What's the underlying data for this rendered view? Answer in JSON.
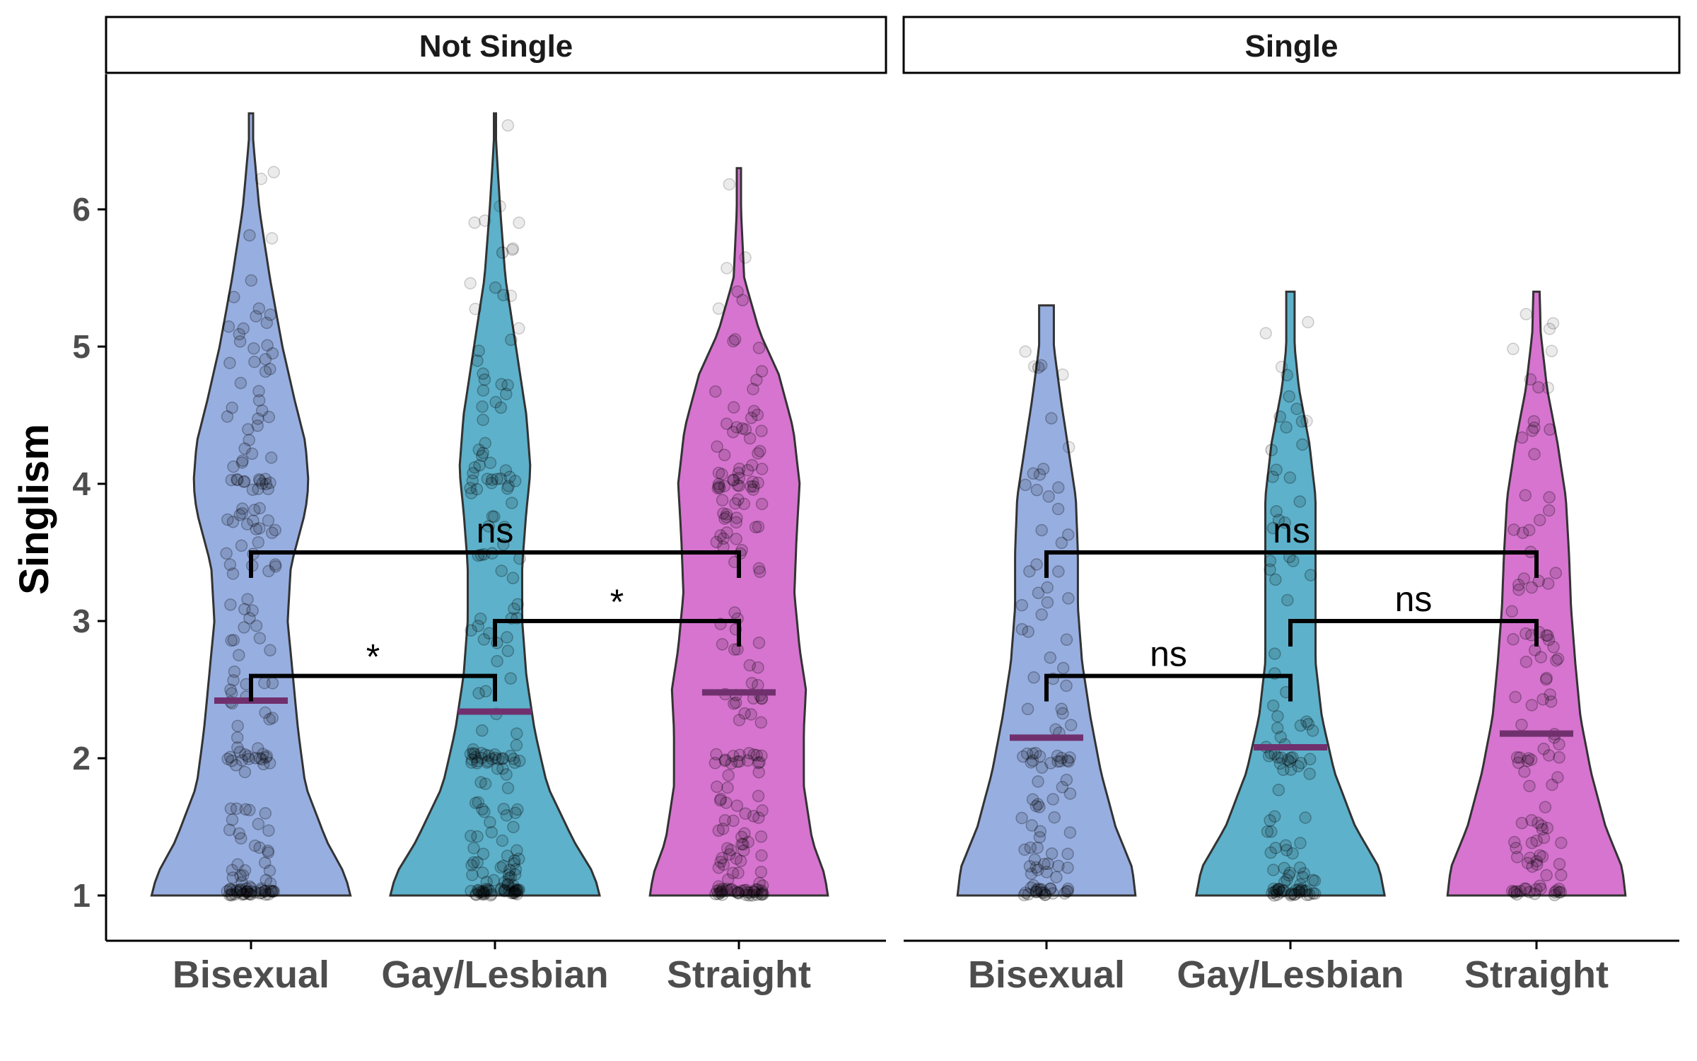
{
  "chart_data": {
    "type": "violin",
    "ylabel": "Singlism",
    "xlabel": "",
    "ylim": [
      0.7,
      6.95
    ],
    "yticks": [
      "1",
      "2",
      "3",
      "4",
      "5",
      "6"
    ],
    "categories": [
      "Bisexual",
      "Gay/Lesbian",
      "Straight"
    ],
    "colors": {
      "Bisexual": "#97aee0",
      "Gay/Lesbian": "#5db1ca",
      "Straight": "#d674cf",
      "median": "#70306e",
      "outline": "#333333"
    },
    "panels": [
      {
        "title": "Not Single",
        "groups": [
          {
            "category": "Bisexual",
            "median": 2.42,
            "max": 6.7,
            "widths": [
              [
                1,
                0.95
              ],
              [
                1.15,
                0.9
              ],
              [
                1.4,
                0.72
              ],
              [
                1.8,
                0.52
              ],
              [
                2.2,
                0.45
              ],
              [
                2.6,
                0.4
              ],
              [
                3.0,
                0.35
              ],
              [
                3.4,
                0.38
              ],
              [
                3.8,
                0.52
              ],
              [
                4.0,
                0.55
              ],
              [
                4.3,
                0.52
              ],
              [
                4.6,
                0.42
              ],
              [
                5.0,
                0.3
              ],
              [
                5.5,
                0.18
              ],
              [
                6.0,
                0.08
              ],
              [
                6.5,
                0.02
              ],
              [
                6.7,
                0.02
              ]
            ]
          },
          {
            "category": "Gay/Lesbian",
            "median": 2.34,
            "max": 6.7,
            "widths": [
              [
                1,
                1.0
              ],
              [
                1.15,
                0.95
              ],
              [
                1.4,
                0.75
              ],
              [
                1.8,
                0.5
              ],
              [
                2.2,
                0.38
              ],
              [
                2.6,
                0.3
              ],
              [
                3.0,
                0.26
              ],
              [
                3.4,
                0.26
              ],
              [
                3.8,
                0.3
              ],
              [
                4.1,
                0.34
              ],
              [
                4.5,
                0.3
              ],
              [
                5.0,
                0.2
              ],
              [
                5.5,
                0.1
              ],
              [
                6.0,
                0.05
              ],
              [
                6.5,
                0.01
              ],
              [
                6.7,
                0.01
              ]
            ]
          },
          {
            "category": "Straight",
            "median": 2.48,
            "max": 6.3,
            "widths": [
              [
                1,
                0.85
              ],
              [
                1.15,
                0.82
              ],
              [
                1.4,
                0.7
              ],
              [
                1.8,
                0.62
              ],
              [
                2.2,
                0.62
              ],
              [
                2.5,
                0.64
              ],
              [
                2.8,
                0.58
              ],
              [
                3.2,
                0.53
              ],
              [
                3.6,
                0.55
              ],
              [
                4.0,
                0.58
              ],
              [
                4.4,
                0.52
              ],
              [
                4.8,
                0.38
              ],
              [
                5.1,
                0.2
              ],
              [
                5.5,
                0.05
              ],
              [
                6.0,
                0.02
              ],
              [
                6.3,
                0.02
              ]
            ]
          }
        ],
        "comparisons": [
          {
            "from": "Bisexual",
            "to": "Gay/Lesbian",
            "y": 2.6,
            "label": "*"
          },
          {
            "from": "Gay/Lesbian",
            "to": "Straight",
            "y": 3.0,
            "label": "*"
          },
          {
            "from": "Bisexual",
            "to": "Straight",
            "y": 3.5,
            "label": "ns"
          }
        ]
      },
      {
        "title": "Single",
        "groups": [
          {
            "category": "Bisexual",
            "median": 2.15,
            "max": 5.3,
            "widths": [
              [
                1,
                0.85
              ],
              [
                1.2,
                0.82
              ],
              [
                1.5,
                0.66
              ],
              [
                1.9,
                0.52
              ],
              [
                2.3,
                0.42
              ],
              [
                2.7,
                0.34
              ],
              [
                3.1,
                0.3
              ],
              [
                3.5,
                0.3
              ],
              [
                3.9,
                0.28
              ],
              [
                4.2,
                0.22
              ],
              [
                4.6,
                0.14
              ],
              [
                5.0,
                0.07
              ],
              [
                5.3,
                0.07
              ]
            ]
          },
          {
            "category": "Gay/Lesbian",
            "median": 2.08,
            "max": 5.4,
            "widths": [
              [
                1,
                0.9
              ],
              [
                1.2,
                0.85
              ],
              [
                1.5,
                0.62
              ],
              [
                1.9,
                0.42
              ],
              [
                2.3,
                0.3
              ],
              [
                2.7,
                0.24
              ],
              [
                3.1,
                0.24
              ],
              [
                3.5,
                0.24
              ],
              [
                3.9,
                0.24
              ],
              [
                4.3,
                0.18
              ],
              [
                4.7,
                0.08
              ],
              [
                5.0,
                0.04
              ],
              [
                5.4,
                0.04
              ]
            ]
          },
          {
            "category": "Straight",
            "median": 2.18,
            "max": 5.4,
            "widths": [
              [
                1,
                0.85
              ],
              [
                1.2,
                0.82
              ],
              [
                1.5,
                0.66
              ],
              [
                1.9,
                0.52
              ],
              [
                2.3,
                0.42
              ],
              [
                2.7,
                0.37
              ],
              [
                3.1,
                0.33
              ],
              [
                3.5,
                0.31
              ],
              [
                3.9,
                0.28
              ],
              [
                4.3,
                0.2
              ],
              [
                4.7,
                0.1
              ],
              [
                5.1,
                0.04
              ],
              [
                5.4,
                0.03
              ]
            ]
          }
        ],
        "comparisons": [
          {
            "from": "Bisexual",
            "to": "Gay/Lesbian",
            "y": 2.6,
            "label": "ns"
          },
          {
            "from": "Gay/Lesbian",
            "to": "Straight",
            "y": 3.0,
            "label": "ns"
          },
          {
            "from": "Bisexual",
            "to": "Straight",
            "y": 3.5,
            "label": "ns"
          }
        ]
      }
    ]
  }
}
